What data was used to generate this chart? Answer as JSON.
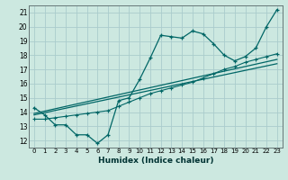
{
  "xlabel": "Humidex (Indice chaleur)",
  "xlim": [
    -0.5,
    23.5
  ],
  "ylim": [
    11.5,
    21.5
  ],
  "yticks": [
    12,
    13,
    14,
    15,
    16,
    17,
    18,
    19,
    20,
    21
  ],
  "xticks": [
    0,
    1,
    2,
    3,
    4,
    5,
    6,
    7,
    8,
    9,
    10,
    11,
    12,
    13,
    14,
    15,
    16,
    17,
    18,
    19,
    20,
    21,
    22,
    23
  ],
  "xtick_labels": [
    "0",
    "1",
    "2",
    "3",
    "4",
    "5",
    "6",
    "7",
    "8",
    "9",
    "10",
    "11",
    "12",
    "13",
    "14",
    "15",
    "16",
    "17",
    "18",
    "19",
    "20",
    "21",
    "22",
    "23"
  ],
  "background_color": "#cce8e0",
  "grid_color": "#aacccc",
  "line_color": "#006666",
  "line1_x": [
    0,
    1,
    2,
    3,
    4,
    5,
    6,
    7,
    8,
    9,
    10,
    11,
    12,
    13,
    14,
    15,
    16,
    17,
    18,
    19,
    20,
    21,
    22,
    23
  ],
  "line1_y": [
    14.3,
    13.8,
    13.1,
    13.1,
    12.4,
    12.4,
    11.8,
    12.4,
    14.8,
    15.0,
    16.3,
    17.8,
    19.4,
    19.3,
    19.2,
    19.7,
    19.5,
    18.8,
    18.0,
    17.6,
    17.9,
    18.5,
    20.0,
    21.2
  ],
  "line2_x": [
    0,
    1,
    2,
    3,
    4,
    5,
    6,
    7,
    8,
    9,
    10,
    11,
    12,
    13,
    14,
    15,
    16,
    17,
    18,
    19,
    20,
    21,
    22,
    23
  ],
  "line2_y": [
    13.5,
    13.5,
    13.6,
    13.7,
    13.8,
    13.9,
    14.0,
    14.1,
    14.4,
    14.7,
    15.0,
    15.3,
    15.5,
    15.7,
    15.9,
    16.1,
    16.4,
    16.7,
    17.0,
    17.2,
    17.5,
    17.7,
    17.9,
    18.1
  ],
  "line3_x": [
    0,
    23
  ],
  "line3_y": [
    13.8,
    17.4
  ],
  "line4_x": [
    0,
    23
  ],
  "line4_y": [
    13.9,
    17.7
  ]
}
